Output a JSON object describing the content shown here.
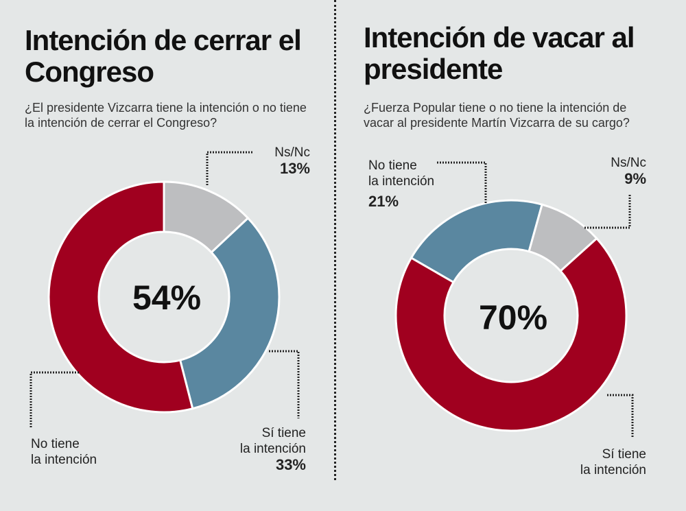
{
  "chart_data": [
    {
      "type": "pie",
      "title": "Intención de cerrar el Congreso",
      "subtitle": "¿El presidente Vizcarra tiene la intención o no tiene la intención de cerrar el Congreso?",
      "center_label": "54%",
      "slices": [
        {
          "label": "Ns/Nc",
          "value": 13,
          "display": "13%",
          "color": "#bdbec0"
        },
        {
          "label": "Sí tiene la intención",
          "line1": "Sí tiene",
          "line2": "la intención",
          "value": 33,
          "display": "33%",
          "color": "#5a87a0"
        },
        {
          "label": "No tiene la intención",
          "line1": "No tiene",
          "line2": "la intención",
          "value": 54,
          "display": "",
          "color": "#a0001f"
        }
      ]
    },
    {
      "type": "pie",
      "title": "Intención de vacar al presidente",
      "subtitle": "¿Fuerza Popular tiene o no tiene la intención de vacar al presidente Martín Vizcarra de su cargo?",
      "center_label": "70%",
      "slices": [
        {
          "label": "No tiene la intención",
          "line1": "No tiene",
          "line2": "la intención",
          "value": 21,
          "display": "21%",
          "color": "#5a87a0"
        },
        {
          "label": "Ns/Nc",
          "value": 9,
          "display": "9%",
          "color": "#bdbec0"
        },
        {
          "label": "Sí tiene la intención",
          "line1": "Sí tiene",
          "line2": "la intención",
          "value": 70,
          "display": "",
          "color": "#a0001f"
        }
      ]
    }
  ]
}
